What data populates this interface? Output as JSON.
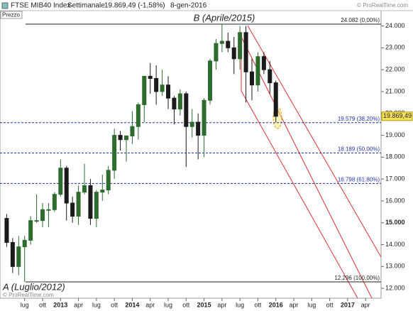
{
  "chart_data": {
    "type": "candlestick",
    "title": "FTSE MIB40 Index",
    "period": "Settimanale",
    "last_change": "19.869,49 (-1,58%)",
    "date": "8-gen-2016",
    "watermark": "© ProRealTime.com",
    "y_label": "Prezzo",
    "annotations": [
      "B (Aprile/2015)",
      "A (Luglio/2012)"
    ],
    "up_color": "#2e6b2e",
    "down_color": "#1a1a1a",
    "x": [
      "2012-04",
      "2012-05",
      "2012-06",
      "2012-07",
      "2012-08",
      "2012-09",
      "2012-10",
      "2012-11",
      "2012-12",
      "2013-01",
      "2013-02",
      "2013-03",
      "2013-04",
      "2013-05",
      "2013-06",
      "2013-07",
      "2013-08",
      "2013-09",
      "2013-10",
      "2013-11",
      "2013-12",
      "2014-01",
      "2014-02",
      "2014-03",
      "2014-04",
      "2014-05",
      "2014-06",
      "2014-07",
      "2014-08",
      "2014-09",
      "2014-10",
      "2014-11",
      "2014-12",
      "2015-01",
      "2015-02",
      "2015-03",
      "2015-04",
      "2015-05",
      "2015-06",
      "2015-07",
      "2015-08",
      "2015-09",
      "2015-10",
      "2015-11",
      "2015-12",
      "2016-01"
    ],
    "open": [
      15200,
      14100,
      13000,
      13900,
      14200,
      15100,
      15100,
      15600,
      15600,
      16300,
      17500,
      15900,
      15300,
      16400,
      16700,
      15200,
      16400,
      16500,
      17400,
      19000,
      18800,
      18970,
      19400,
      20400,
      21700,
      21600,
      21000,
      21300,
      20700,
      20200,
      20900,
      19400,
      19600,
      19000,
      20600,
      22400,
      23200,
      23300,
      23000,
      22500,
      23700,
      21900,
      21300,
      22600,
      22000,
      21400
    ],
    "high": [
      15400,
      14300,
      14400,
      14400,
      15300,
      16300,
      15900,
      15900,
      16400,
      17900,
      17600,
      16200,
      16700,
      17700,
      17000,
      16500,
      17200,
      17600,
      19300,
      19200,
      19000,
      20100,
      20500,
      21700,
      22300,
      22200,
      22000,
      21700,
      20800,
      21100,
      21000,
      20200,
      20000,
      20700,
      22500,
      23400,
      24082,
      23700,
      23500,
      24000,
      24000,
      22500,
      22800,
      22800,
      22400,
      21500
    ],
    "low": [
      13900,
      12700,
      12600,
      12296,
      14000,
      15000,
      14800,
      14800,
      15500,
      16200,
      15100,
      15000,
      14900,
      16300,
      14900,
      14800,
      16000,
      16300,
      17000,
      18300,
      17800,
      18600,
      18800,
      19600,
      20900,
      20400,
      20800,
      20200,
      19500,
      19900,
      17550,
      18900,
      17900,
      18000,
      20400,
      22000,
      22800,
      22800,
      21800,
      22000,
      20500,
      20600,
      21000,
      21800,
      20900,
      19600
    ],
    "close": [
      14100,
      13000,
      13900,
      14200,
      15100,
      15100,
      15600,
      15600,
      16300,
      17500,
      15900,
      15300,
      16400,
      16700,
      15200,
      16400,
      16500,
      17400,
      19000,
      18800,
      18970,
      19400,
      20400,
      21700,
      21600,
      21000,
      21300,
      20700,
      20200,
      20900,
      19400,
      19600,
      19000,
      20600,
      22400,
      23200,
      23300,
      23000,
      22500,
      23700,
      21900,
      21300,
      22600,
      22000,
      21400,
      19869.49
    ],
    "xlim": [
      "2012-03",
      "2017-06"
    ],
    "xticks": [
      {
        "value": "2012-07",
        "label": "lug"
      },
      {
        "value": "2012-10",
        "label": "ott"
      },
      {
        "value": "2013-01",
        "label": "2013"
      },
      {
        "value": "2013-04",
        "label": "apr"
      },
      {
        "value": "2013-07",
        "label": "lug"
      },
      {
        "value": "2013-10",
        "label": "ott"
      },
      {
        "value": "2014-01",
        "label": "2014"
      },
      {
        "value": "2014-04",
        "label": "apr"
      },
      {
        "value": "2014-07",
        "label": "lug"
      },
      {
        "value": "2014-10",
        "label": "ott"
      },
      {
        "value": "2015-01",
        "label": "2015"
      },
      {
        "value": "2015-04",
        "label": "apr"
      },
      {
        "value": "2015-07",
        "label": "lug"
      },
      {
        "value": "2015-10",
        "label": "ott"
      },
      {
        "value": "2016-01",
        "label": "2016"
      },
      {
        "value": "2016-04",
        "label": "apr"
      },
      {
        "value": "2016-07",
        "label": "lug"
      },
      {
        "value": "2016-10",
        "label": "ott"
      },
      {
        "value": "2017-01",
        "label": "2017"
      },
      {
        "value": "2017-04",
        "label": "apr"
      }
    ],
    "ylim": [
      11550,
      24700
    ],
    "yticks": [
      {
        "value": 12000,
        "label": "12.000"
      },
      {
        "value": 13000,
        "label": "13.000"
      },
      {
        "value": 14000,
        "label": "14.000"
      },
      {
        "value": 15000,
        "label": "15.000"
      },
      {
        "value": 16000,
        "label": "16.000"
      },
      {
        "value": 17000,
        "label": "17.000"
      },
      {
        "value": 18000,
        "label": "18.000"
      },
      {
        "value": 19000,
        "label": "19.000"
      },
      {
        "value": 20000,
        "label": "20.000"
      },
      {
        "value": 21000,
        "label": "21.000"
      },
      {
        "value": 22000,
        "label": "22.000"
      },
      {
        "value": 23000,
        "label": "23.000"
      },
      {
        "value": 24000,
        "label": "24.000"
      }
    ],
    "levels": [
      {
        "value": 24082,
        "label": "24.082 (0,00%)"
      },
      {
        "value": 19579,
        "label": "19.579 (38,20%)"
      },
      {
        "value": 18189,
        "label": "18.189 (50,00%)"
      },
      {
        "value": 16798,
        "label": "16.798 (61,80%)"
      },
      {
        "value": 12296,
        "label": "12.296 (100,00%)"
      }
    ],
    "last_price": {
      "value": 19869.49,
      "label": "19.869,49"
    }
  }
}
